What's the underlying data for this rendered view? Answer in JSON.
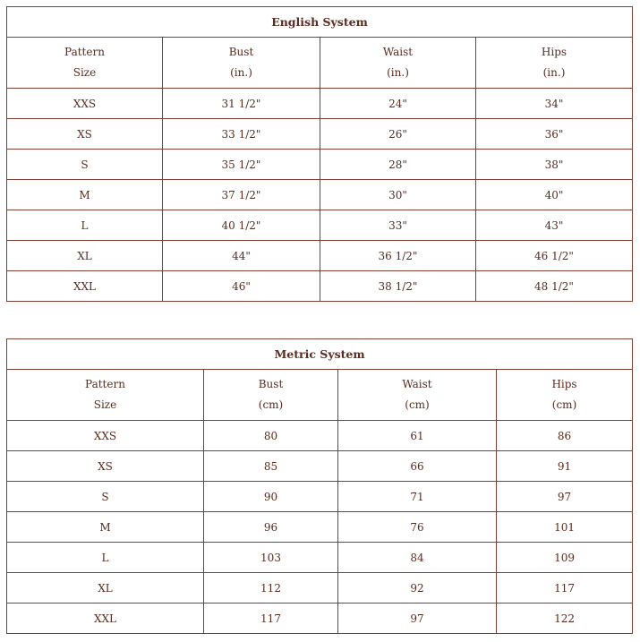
{
  "colors": {
    "border": "#7d4032",
    "text": "#5b2c20"
  },
  "english": {
    "title": "English System",
    "headers": [
      [
        "Pattern",
        "Size"
      ],
      [
        "Bust",
        "(in.)"
      ],
      [
        "Waist",
        "(in.)"
      ],
      [
        "Hips",
        "(in.)"
      ]
    ],
    "rows": [
      [
        "XXS",
        "31 1/2\"",
        "24\"",
        "34\""
      ],
      [
        "XS",
        "33 1/2\"",
        "26\"",
        "36\""
      ],
      [
        "S",
        "35 1/2\"",
        "28\"",
        "38\""
      ],
      [
        "M",
        "37 1/2\"",
        "30\"",
        "40\""
      ],
      [
        "L",
        "40 1/2\"",
        "33\"",
        "43\""
      ],
      [
        "XL",
        "44\"",
        "36 1/2\"",
        "46 1/2\""
      ],
      [
        "XXL",
        "46\"",
        "38 1/2\"",
        "48 1/2\""
      ]
    ]
  },
  "metric": {
    "title": "Metric System",
    "headers": [
      [
        "Pattern",
        "Size"
      ],
      [
        "Bust",
        "(cm)"
      ],
      [
        "Waist",
        "(cm)"
      ],
      [
        "Hips",
        "(cm)"
      ]
    ],
    "rows": [
      [
        "XXS",
        "80",
        "61",
        "86"
      ],
      [
        "XS",
        "85",
        "66",
        "91"
      ],
      [
        "S",
        "90",
        "71",
        "97"
      ],
      [
        "M",
        "96",
        "76",
        "101"
      ],
      [
        "L",
        "103",
        "84",
        "109"
      ],
      [
        "XL",
        "112",
        "92",
        "117"
      ],
      [
        "XXL",
        "117",
        "97",
        "122"
      ]
    ]
  }
}
